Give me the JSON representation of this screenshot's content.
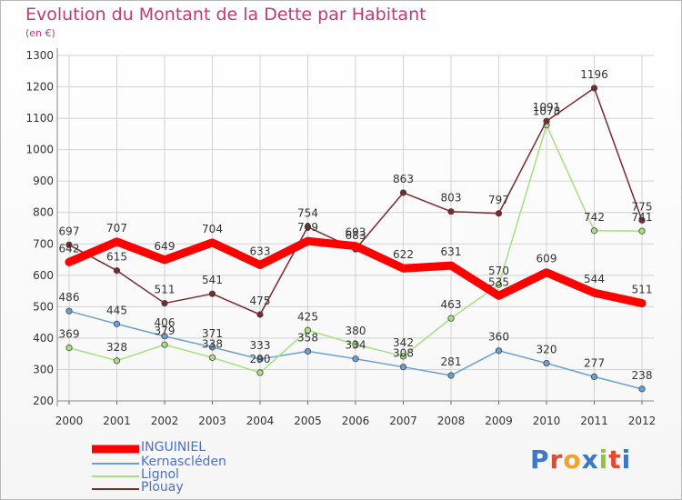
{
  "header": {
    "title": "Evolution du Montant de la Dette par Habitant",
    "subtitle": "(en €)"
  },
  "logo": {
    "text": "Proxiti",
    "letter_colors": [
      "#3a78c8",
      "#e8472f",
      "#f2a12c",
      "#3a78c8",
      "#8cc63f",
      "#e8472f",
      "#3a78c8"
    ]
  },
  "chart_data": {
    "type": "line",
    "title": "Evolution du Montant de la Dette par Habitant",
    "subtitle": "(en €)",
    "xlabel": "",
    "ylabel": "",
    "x": [
      "2000",
      "2001",
      "2002",
      "2003",
      "2004",
      "2005",
      "2006",
      "2007",
      "2008",
      "2009",
      "2010",
      "2011",
      "2012"
    ],
    "ylim": [
      200,
      1300
    ],
    "yticks": [
      "200",
      "300",
      "400",
      "500",
      "600",
      "700",
      "800",
      "900",
      "1000",
      "1100",
      "1200",
      "1300"
    ],
    "grid": true,
    "legend_position": "bottom-left",
    "series": [
      {
        "name": "INGUINIEL",
        "color": "#ff0000",
        "values": [
          642,
          707,
          649,
          704,
          633,
          709,
          693,
          622,
          631,
          535,
          609,
          544,
          511
        ]
      },
      {
        "name": "Kernascléden",
        "color": "#6ba0d2",
        "values": [
          486,
          445,
          406,
          371,
          333,
          358,
          334,
          308,
          281,
          360,
          320,
          277,
          238
        ]
      },
      {
        "name": "Lignol",
        "color": "#a6e080",
        "values": [
          369,
          328,
          379,
          338,
          290,
          425,
          380,
          342,
          463,
          570,
          1078,
          742,
          741
        ]
      },
      {
        "name": "Plouay",
        "color": "#7a2a2a",
        "values": [
          697,
          615,
          511,
          541,
          475,
          754,
          683,
          863,
          803,
          797,
          1091,
          1196,
          775
        ]
      }
    ]
  }
}
